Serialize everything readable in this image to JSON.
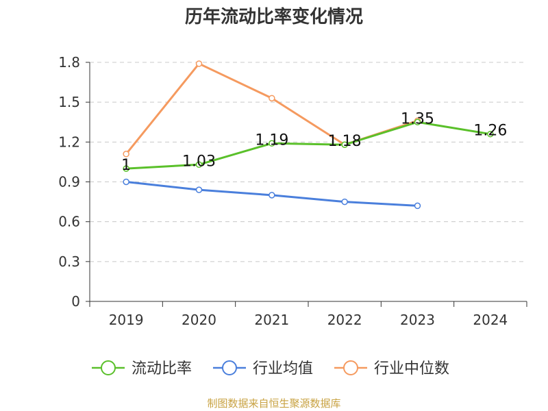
{
  "chart_data": {
    "type": "line",
    "title": "历年流动比率变化情况",
    "xlabel": "",
    "ylabel": "",
    "categories": [
      "2019",
      "2020",
      "2021",
      "2022",
      "2023",
      "2024"
    ],
    "ylim": [
      0,
      1.8
    ],
    "yticks": [
      "0",
      "0.3",
      "0.6",
      "0.9",
      "1.2",
      "1.5",
      "1.8"
    ],
    "grid": true,
    "legend_position": "bottom",
    "series": [
      {
        "name": "流动比率",
        "color": "#5ac02a",
        "values": [
          1,
          1.03,
          1.19,
          1.18,
          1.35,
          1.26
        ],
        "data_labels": [
          "1",
          "1.03",
          "1.19",
          "1.18",
          "1.35",
          "1.26"
        ]
      },
      {
        "name": "行业均值",
        "color": "#4a7fdc",
        "values": [
          0.9,
          0.84,
          0.8,
          0.75,
          0.72,
          null
        ]
      },
      {
        "name": "行业中位数",
        "color": "#f59a5f",
        "values": [
          1.11,
          1.79,
          1.53,
          1.18,
          1.36,
          null
        ]
      }
    ]
  },
  "footer": {
    "source": "制图数据来自恒生聚源数据库"
  }
}
